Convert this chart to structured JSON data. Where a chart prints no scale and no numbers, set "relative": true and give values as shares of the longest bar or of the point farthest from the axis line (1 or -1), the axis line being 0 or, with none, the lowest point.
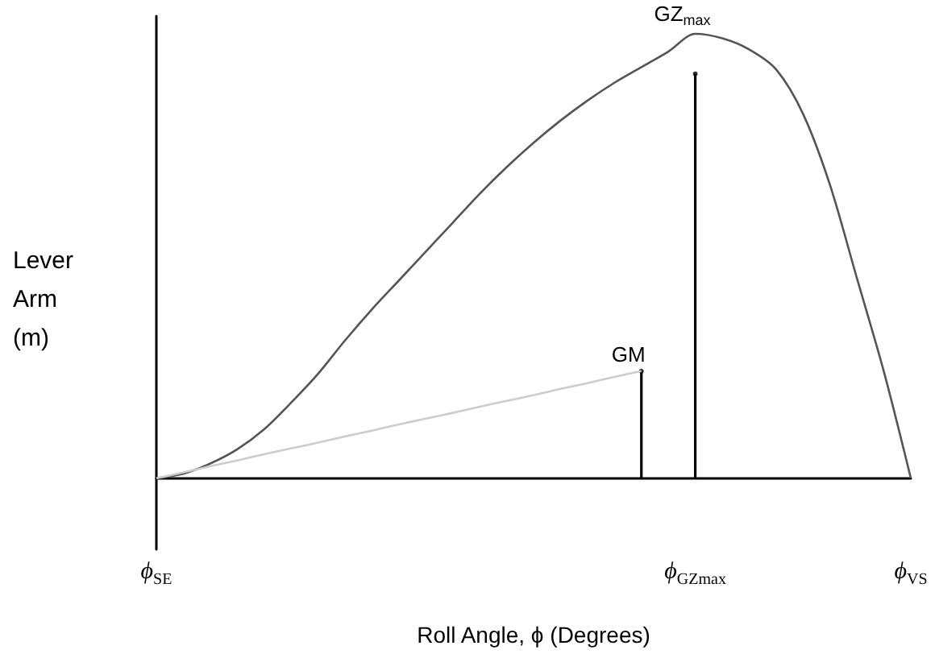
{
  "chart_data": {
    "type": "line",
    "relative": true,
    "xlabel": "Roll Angle, ϕ (Degrees)",
    "ylabel": "Lever\nArm\n(m)",
    "categories": [
      "ϕ$_{SE}$",
      null,
      null,
      null,
      null,
      null,
      null,
      null,
      null,
      null,
      null,
      null,
      null,
      null,
      null,
      null,
      null,
      null,
      null,
      null,
      "ϕ$_{GZmax}$",
      null,
      null,
      null,
      null,
      null,
      null,
      null,
      "ϕ$_{VS}$"
    ],
    "series": [
      {
        "color": "#555555",
        "values": [
          0,
          0.01,
          0.033,
          0.065,
          0.11,
          0.17,
          0.235,
          0.31,
          0.38,
          0.445,
          0.51,
          0.575,
          0.64,
          0.7,
          0.755,
          0.805,
          0.85,
          0.89,
          0.925,
          0.96,
          1,
          0.99,
          0.965,
          0.92,
          0.82,
          0.66,
          0.45,
          0.24,
          0
        ]
      },
      {
        "color": "#cccccc",
        "values": [
          0,
          0.013,
          0.027,
          0.04,
          0.054,
          0.067,
          0.08,
          0.094,
          0.107,
          0.121,
          0.134,
          0.147,
          0.161,
          0.174,
          0.187,
          0.201,
          0.214,
          0.228,
          0.241,
          null,
          null,
          null,
          null,
          null,
          null,
          null,
          null,
          null,
          null
        ]
      },
      {
        "type": "lollipop",
        "color": "#000000",
        "values": [
          null,
          null,
          null,
          null,
          null,
          null,
          null,
          null,
          null,
          null,
          null,
          null,
          null,
          null,
          null,
          null,
          null,
          null,
          0.241,
          null,
          null,
          null,
          null,
          null,
          null,
          null,
          null,
          null,
          null
        ]
      },
      {
        "type": "lollipop",
        "color": "#000000",
        "values": [
          null,
          null,
          null,
          null,
          null,
          null,
          null,
          null,
          null,
          null,
          null,
          null,
          null,
          null,
          null,
          null,
          null,
          null,
          null,
          null,
          0.91,
          null,
          null,
          null,
          null,
          null,
          null,
          null,
          null
        ]
      }
    ],
    "annotations": [
      {
        "text": "GZ$_{max}$",
        "x": "ϕ$_{GZmax}$",
        "y": 1
      },
      {
        "text": "GM",
        "y": 0.241
      }
    ],
    "grid": false,
    "marker": "none",
    "line_style": "solid"
  }
}
